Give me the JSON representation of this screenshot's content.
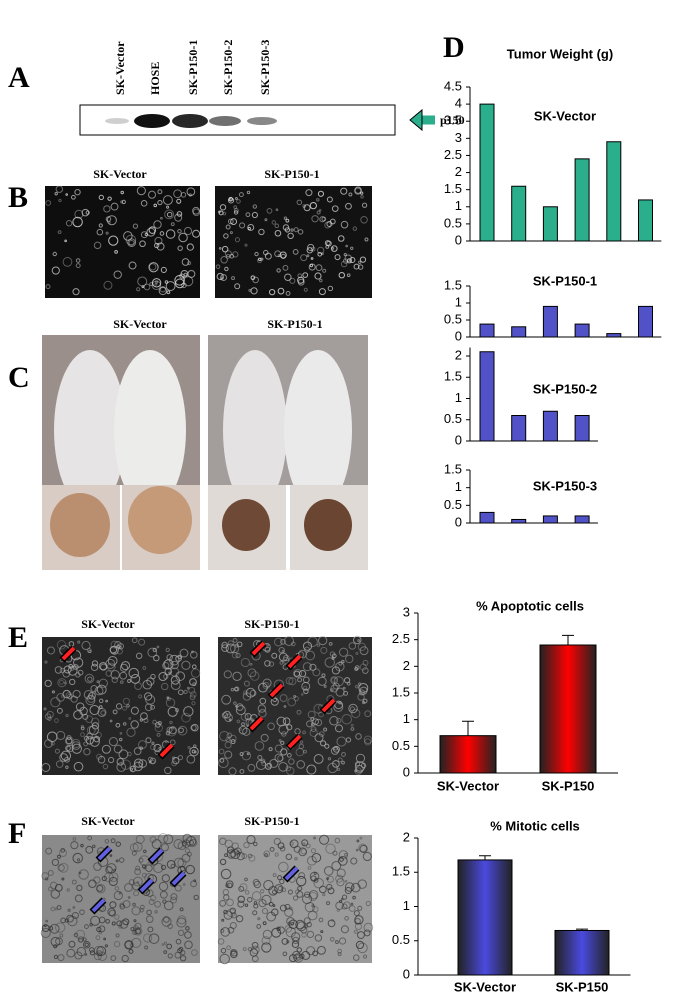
{
  "panels": {
    "A": {
      "label": "A",
      "lanes": [
        "SK-Vector",
        "HOSE",
        "SK-P150-1",
        "SK-P150-2",
        "SK-P150-3"
      ],
      "band": "p150"
    },
    "B": {
      "label": "B",
      "captions": [
        "SK-Vector",
        "SK-P150-1"
      ]
    },
    "C": {
      "label": "C",
      "captions": [
        "SK-Vector",
        "SK-P150-1"
      ]
    },
    "D": {
      "label": "D",
      "title": "Tumor Weight (g)"
    },
    "E": {
      "label": "E",
      "captions": [
        "SK-Vector",
        "SK-P150-1"
      ]
    },
    "F": {
      "label": "F",
      "captions": [
        "SK-Vector",
        "SK-P150-1"
      ]
    }
  },
  "chart_data": [
    {
      "type": "bar",
      "categories": [
        null,
        null,
        null,
        null,
        null,
        null
      ],
      "series": [
        {
          "name": "SK-Vector",
          "color": "#2aae8c",
          "values": [
            4,
            1.6,
            1.0,
            2.4,
            2.9,
            1.2
          ]
        }
      ],
      "ylim": [
        0,
        4.5
      ],
      "yticks": [
        0,
        0.5,
        1,
        1.5,
        2,
        2.5,
        3,
        3.5,
        4,
        4.5
      ]
    },
    {
      "type": "bar",
      "categories": [
        null,
        null,
        null,
        null,
        null,
        null
      ],
      "series": [
        {
          "name": "SK-P150-1",
          "color": "#5252c8",
          "values": [
            0.38,
            0.3,
            0.9,
            0.38,
            0.1,
            0.9
          ]
        }
      ],
      "ylim": [
        0,
        1.5
      ],
      "yticks": [
        0,
        0.5,
        1,
        1.5
      ]
    },
    {
      "type": "bar",
      "categories": [
        null,
        null,
        null,
        null
      ],
      "series": [
        {
          "name": "SK-P150-2",
          "color": "#5252c8",
          "values": [
            2.1,
            0.6,
            0.7,
            0.6
          ]
        }
      ],
      "ylim": [
        0,
        2.2
      ],
      "yticks": [
        0,
        0.5,
        1,
        1.5,
        2
      ]
    },
    {
      "type": "bar",
      "categories": [
        null,
        null,
        null,
        null
      ],
      "series": [
        {
          "name": "SK-P150-3",
          "color": "#5252c8",
          "values": [
            0.3,
            0.1,
            0.2,
            0.2
          ]
        }
      ],
      "ylim": [
        0,
        1.5
      ],
      "yticks": [
        0,
        0.5,
        1,
        1.5
      ]
    },
    {
      "type": "bar",
      "title": "% Apoptotic cells",
      "categories": [
        "SK-Vector",
        "SK-P150"
      ],
      "values": [
        0.7,
        2.4
      ],
      "errors": [
        0.27,
        0.18
      ],
      "color": "#ff0000",
      "ylim": [
        0,
        3
      ],
      "yticks": [
        0,
        0.5,
        1,
        1.5,
        2,
        2.5,
        3
      ]
    },
    {
      "type": "bar",
      "title": "% Mitotic cells",
      "categories": [
        "SK-Vector",
        "SK-P150"
      ],
      "values": [
        1.68,
        0.65
      ],
      "errors": [
        0.06,
        0.02
      ],
      "color": "#4a4ae0",
      "ylim": [
        0,
        2
      ],
      "yticks": [
        0,
        0.5,
        1,
        1.5,
        2
      ]
    }
  ]
}
